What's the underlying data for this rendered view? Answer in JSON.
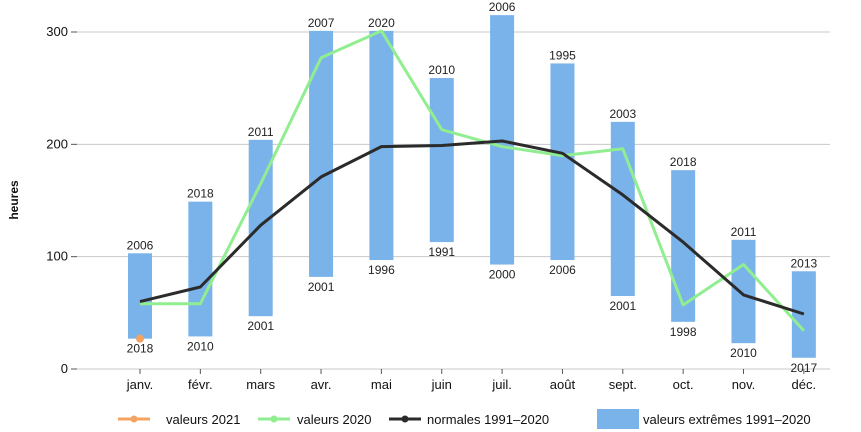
{
  "chart_data": {
    "type": "bar",
    "ylabel": "heures",
    "ylim": [
      0,
      320
    ],
    "yticks": [
      0,
      100,
      200,
      300
    ],
    "grid": true,
    "legend_position": "bottom",
    "categories": [
      "janv.",
      "févr.",
      "mars",
      "avr.",
      "mai",
      "juin",
      "juil.",
      "août",
      "sept.",
      "oct.",
      "nov.",
      "déc."
    ],
    "extremes": {
      "name": "valeurs extrêmes 1991–2020",
      "color": "#7ab2ea",
      "max": [
        103,
        149,
        204,
        301,
        301,
        259,
        315,
        272,
        220,
        177,
        115,
        87
      ],
      "max_year": [
        "2006",
        "2018",
        "2011",
        "2007",
        "2020",
        "2010",
        "2006",
        "1995",
        "2003",
        "2018",
        "2011",
        "2013"
      ],
      "min": [
        27,
        29,
        47,
        82,
        97,
        113,
        93,
        97,
        65,
        42,
        23,
        10
      ],
      "min_year": [
        "2018",
        "2010",
        "2001",
        "2001",
        "1996",
        "1991",
        "2000",
        "2006",
        "2001",
        "1998",
        "2010",
        "2017"
      ]
    },
    "series": [
      {
        "name": "valeurs 2021",
        "color": "#f4a460",
        "values": [
          27,
          null,
          null,
          null,
          null,
          null,
          null,
          null,
          null,
          null,
          null,
          null
        ]
      },
      {
        "name": "valeurs 2020",
        "color": "#90ee90",
        "values": [
          58,
          58,
          165,
          277,
          301,
          213,
          198,
          190,
          196,
          57,
          93,
          34
        ]
      },
      {
        "name": "normales 1991–2020",
        "color": "#2b2b2b",
        "values": [
          60,
          73,
          128,
          171,
          198,
          199,
          203,
          192,
          155,
          113,
          66,
          49
        ]
      }
    ]
  }
}
